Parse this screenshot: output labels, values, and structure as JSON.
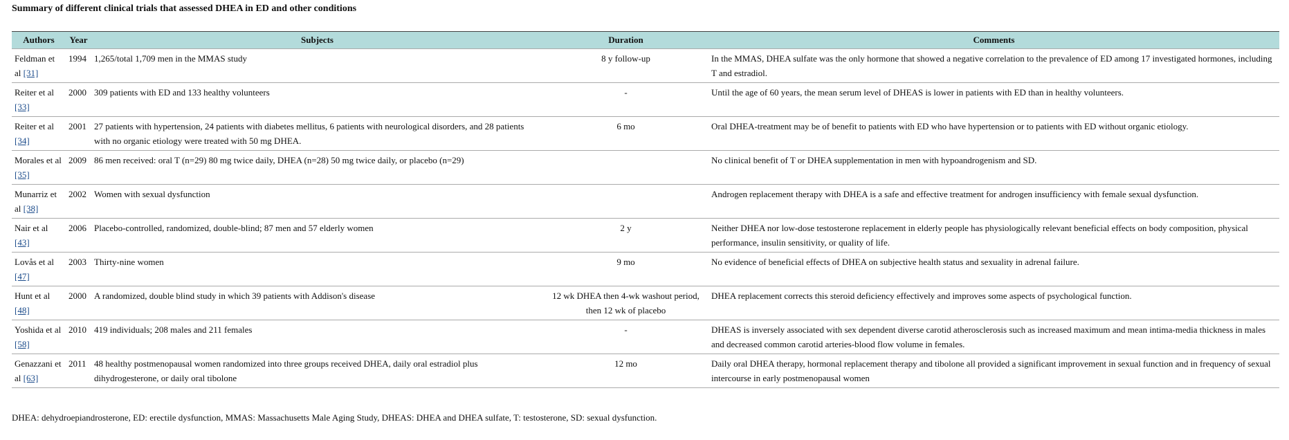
{
  "title": "Summary of different clinical trials that assessed DHEA in ED and other conditions",
  "table": {
    "headers": [
      "Authors",
      "Year",
      "Subjects",
      "Duration",
      "Comments"
    ],
    "rows": [
      {
        "authors": "Feldman et al",
        "ref": "[31]",
        "year": "1994",
        "subjects": "1,265/total 1,709 men in the MMAS study",
        "duration": "8 y follow-up",
        "comments": "In the MMAS, DHEA sulfate was the only hormone that showed a negative correlation to the prevalence of ED among 17 investigated hormones, including T and estradiol."
      },
      {
        "authors": "Reiter et al",
        "ref": "[33]",
        "year": "2000",
        "subjects": "309 patients with ED and 133 healthy volunteers",
        "duration": "-",
        "comments": "Until the age of 60 years, the mean serum level of DHEAS is lower in patients with ED than in healthy volunteers."
      },
      {
        "authors": "Reiter et al",
        "ref": "[34]",
        "year": "2001",
        "subjects": "27 patients with hypertension, 24 patients with diabetes mellitus, 6 patients with neurological disorders, and 28 patients with no organic etiology were treated with 50 mg DHEA.",
        "duration": "6 mo",
        "comments": "Oral DHEA-treatment may be of benefit to patients with ED who have hypertension or to patients with ED without organic etiology."
      },
      {
        "authors": "Morales et al",
        "ref": "[35]",
        "year": "2009",
        "subjects": "86 men received: oral T (n=29) 80 mg twice daily, DHEA (n=28) 50 mg twice daily, or placebo (n=29)",
        "duration": "",
        "comments": "No clinical benefit of T or DHEA supplementation in men with hypoandrogenism and SD."
      },
      {
        "authors": "Munarriz et al",
        "ref": "[38]",
        "year": "2002",
        "subjects": "Women with sexual dysfunction",
        "duration": "",
        "comments": "Androgen replacement therapy with DHEA is a safe and effective treatment for androgen insufficiency with female sexual dysfunction."
      },
      {
        "authors": "Nair et al",
        "ref": "[43]",
        "year": "2006",
        "subjects": "Placebo-controlled, randomized, double-blind; 87 men and 57 elderly women",
        "duration": "2 y",
        "comments": "Neither DHEA nor low-dose testosterone replacement in elderly people has physiologically relevant beneficial effects on body composition, physical performance, insulin sensitivity, or quality of life."
      },
      {
        "authors": "Lovås et al",
        "ref": "[47]",
        "year": "2003",
        "subjects": "Thirty-nine women",
        "duration": "9 mo",
        "comments": "No evidence of beneficial effects of DHEA on subjective health status and sexuality in adrenal failure."
      },
      {
        "authors": "Hunt et al",
        "ref": "[48]",
        "year": "2000",
        "subjects": "A randomized, double blind study in which 39 patients with Addison's disease",
        "duration": "12 wk DHEA then 4-wk washout period, then 12 wk of placebo",
        "comments": "DHEA replacement corrects this steroid deficiency effectively and improves some aspects of psychological function."
      },
      {
        "authors": "Yoshida et al",
        "ref": "[58]",
        "year": "2010",
        "subjects": "419 individuals; 208 males and 211 females",
        "duration": "-",
        "comments": "DHEAS is inversely associated with sex dependent diverse carotid atherosclerosis such as increased maximum and mean intima-media thickness in males and decreased common carotid arteries-blood flow volume in females."
      },
      {
        "authors": "Genazzani et al",
        "ref": "[63]",
        "year": "2011",
        "subjects": "48 healthy postmenopausal women randomized into three groups received DHEA, daily oral estradiol plus dihydrogesterone, or daily oral tibolone",
        "duration": "12 mo",
        "comments": "Daily oral DHEA therapy, hormonal replacement therapy and tibolone all provided a significant improvement in sexual function and in frequency of sexual intercourse in early postmenopausal women"
      }
    ]
  },
  "footnote": "DHEA: dehydroepiandrosterone, ED: erectile dysfunction, MMAS: Massachusetts Male Aging Study, DHEAS: DHEA and DHEA sulfate, T: testosterone, SD: sexual dysfunction."
}
